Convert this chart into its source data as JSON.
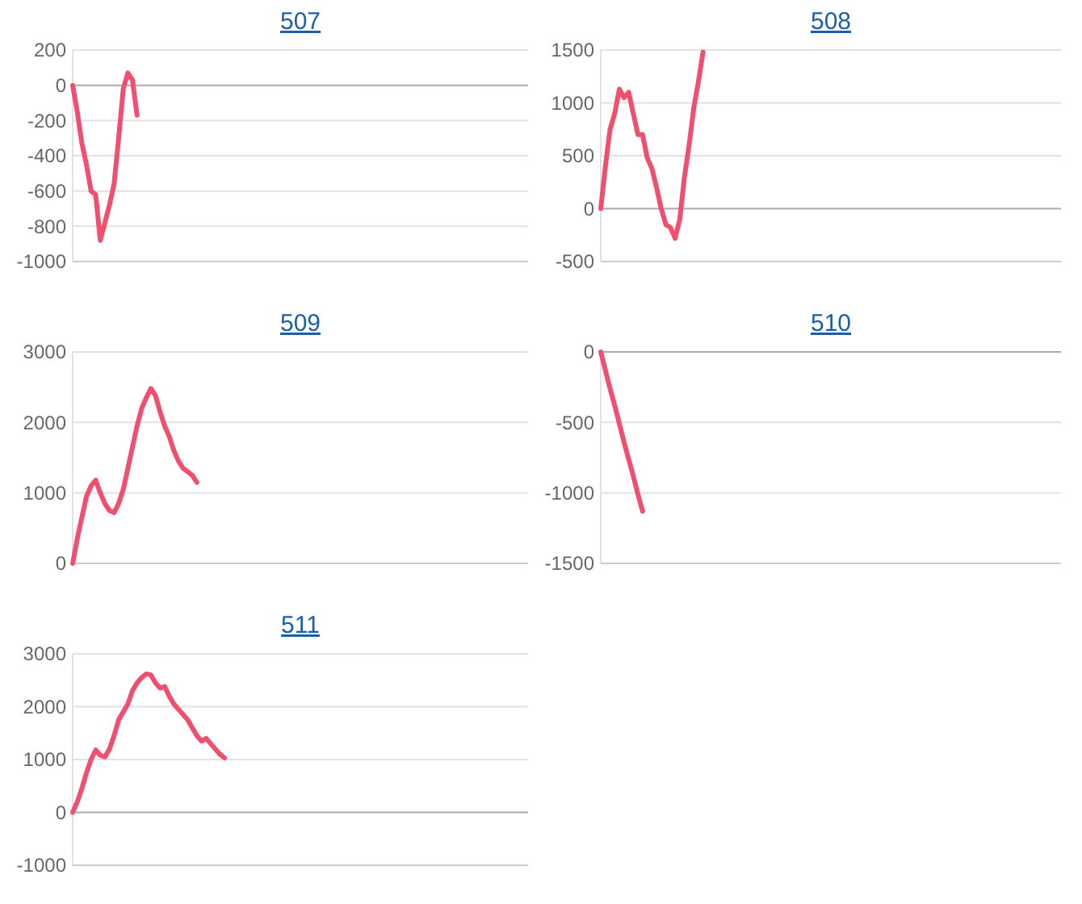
{
  "chart_data": [
    {
      "type": "line",
      "title": "507",
      "categories": [
        null,
        null,
        null,
        null,
        null,
        null,
        null,
        null,
        null,
        null,
        null,
        null,
        null,
        null,
        null,
        null,
        null,
        null,
        null,
        null,
        null,
        null,
        null,
        null,
        null,
        null,
        null,
        null,
        null,
        null,
        null,
        null,
        null,
        null,
        null,
        null,
        null,
        null,
        null,
        null,
        null,
        null,
        null,
        null,
        null,
        null,
        null,
        null,
        null,
        null,
        null,
        null,
        null,
        null,
        null,
        null,
        null,
        null,
        null,
        null,
        null,
        null,
        null,
        null,
        null,
        null,
        null,
        null,
        null,
        null,
        null,
        null,
        null,
        null,
        null,
        null,
        null,
        null,
        null,
        null,
        null,
        null,
        null,
        null,
        null,
        null,
        null,
        null,
        null,
        null,
        null,
        null,
        null,
        null,
        null,
        null,
        null,
        null,
        null,
        null
      ],
      "series": [
        {
          "color": "#f0506e",
          "values": [
            0,
            -150,
            -330,
            -450,
            -600,
            -620,
            -880,
            -780,
            -680,
            -560,
            -300,
            -20,
            70,
            30,
            -170,
            null,
            null,
            null,
            null,
            null,
            null,
            null,
            null,
            null,
            null,
            null,
            null,
            null,
            null,
            null,
            null,
            null,
            null,
            null,
            null,
            null,
            null,
            null,
            null,
            null,
            null,
            null,
            null,
            null,
            null,
            null,
            null,
            null,
            null,
            null,
            null,
            null,
            null,
            null,
            null,
            null,
            null,
            null,
            null,
            null,
            null,
            null,
            null,
            null,
            null,
            null,
            null,
            null,
            null,
            null,
            null,
            null,
            null,
            null,
            null,
            null,
            null,
            null,
            null,
            null,
            null,
            null,
            null,
            null,
            null,
            null,
            null,
            null,
            null,
            null,
            null,
            null,
            null,
            null,
            null,
            null,
            null,
            null,
            null,
            null
          ]
        }
      ],
      "ylim": [
        -1000,
        200
      ],
      "yticks": [
        -1000,
        -800,
        -600,
        -400,
        -200,
        0,
        200
      ],
      "grid": "y",
      "tick_labels": "y",
      "marker": "none"
    },
    {
      "type": "line",
      "title": "508",
      "categories": [
        null,
        null,
        null,
        null,
        null,
        null,
        null,
        null,
        null,
        null,
        null,
        null,
        null,
        null,
        null,
        null,
        null,
        null,
        null,
        null,
        null,
        null,
        null,
        null,
        null,
        null,
        null,
        null,
        null,
        null,
        null,
        null,
        null,
        null,
        null,
        null,
        null,
        null,
        null,
        null,
        null,
        null,
        null,
        null,
        null,
        null,
        null,
        null,
        null,
        null,
        null,
        null,
        null,
        null,
        null,
        null,
        null,
        null,
        null,
        null,
        null,
        null,
        null,
        null,
        null,
        null,
        null,
        null,
        null,
        null,
        null,
        null,
        null,
        null,
        null,
        null,
        null,
        null,
        null,
        null,
        null,
        null,
        null,
        null,
        null,
        null,
        null,
        null,
        null,
        null,
        null,
        null,
        null,
        null,
        null,
        null,
        null,
        null,
        null,
        null
      ],
      "series": [
        {
          "color": "#f0506e",
          "values": [
            0,
            400,
            750,
            900,
            1130,
            1050,
            1100,
            900,
            700,
            700,
            480,
            380,
            200,
            0,
            -150,
            -180,
            -280,
            -100,
            300,
            600,
            950,
            1200,
            1480,
            null,
            null,
            null,
            null,
            null,
            null,
            null,
            null,
            null,
            null,
            null,
            null,
            null,
            null,
            null,
            null,
            null,
            null,
            null,
            null,
            null,
            null,
            null,
            null,
            null,
            null,
            null,
            null,
            null,
            null,
            null,
            null,
            null,
            null,
            null,
            null,
            null,
            null,
            null,
            null,
            null,
            null,
            null,
            null,
            null,
            null,
            null,
            null,
            null,
            null,
            null,
            null,
            null,
            null,
            null,
            null,
            null,
            null,
            null,
            null,
            null,
            null,
            null,
            null,
            null,
            null,
            null,
            null,
            null,
            null,
            null,
            null,
            null,
            null,
            null,
            null,
            null
          ]
        }
      ],
      "ylim": [
        -500,
        1500
      ],
      "yticks": [
        -500,
        0,
        500,
        1000,
        1500
      ],
      "grid": "y",
      "tick_labels": "y",
      "marker": "none"
    },
    {
      "type": "line",
      "title": "509",
      "categories": [
        null,
        null,
        null,
        null,
        null,
        null,
        null,
        null,
        null,
        null,
        null,
        null,
        null,
        null,
        null,
        null,
        null,
        null,
        null,
        null,
        null,
        null,
        null,
        null,
        null,
        null,
        null,
        null,
        null,
        null,
        null,
        null,
        null,
        null,
        null,
        null,
        null,
        null,
        null,
        null,
        null,
        null,
        null,
        null,
        null,
        null,
        null,
        null,
        null,
        null,
        null,
        null,
        null,
        null,
        null,
        null,
        null,
        null,
        null,
        null,
        null,
        null,
        null,
        null,
        null,
        null,
        null,
        null,
        null,
        null,
        null,
        null,
        null,
        null,
        null,
        null,
        null,
        null,
        null,
        null,
        null,
        null,
        null,
        null,
        null,
        null,
        null,
        null,
        null,
        null,
        null,
        null,
        null,
        null,
        null,
        null,
        null,
        null,
        null,
        null
      ],
      "series": [
        {
          "color": "#f0506e",
          "values": [
            0,
            350,
            650,
            950,
            1100,
            1180,
            1000,
            850,
            750,
            720,
            850,
            1050,
            1350,
            1650,
            1950,
            2200,
            2350,
            2480,
            2380,
            2150,
            1950,
            1800,
            1600,
            1450,
            1350,
            1300,
            1250,
            1150,
            null,
            null,
            null,
            null,
            null,
            null,
            null,
            null,
            null,
            null,
            null,
            null,
            null,
            null,
            null,
            null,
            null,
            null,
            null,
            null,
            null,
            null,
            null,
            null,
            null,
            null,
            null,
            null,
            null,
            null,
            null,
            null,
            null,
            null,
            null,
            null,
            null,
            null,
            null,
            null,
            null,
            null,
            null,
            null,
            null,
            null,
            null,
            null,
            null,
            null,
            null,
            null,
            null,
            null,
            null,
            null,
            null,
            null,
            null,
            null,
            null,
            null,
            null,
            null,
            null,
            null,
            null,
            null,
            null,
            null,
            null,
            null
          ]
        }
      ],
      "ylim": [
        0,
        3000
      ],
      "yticks": [
        0,
        1000,
        2000,
        3000
      ],
      "grid": "y",
      "tick_labels": "y",
      "marker": "none"
    },
    {
      "type": "line",
      "title": "510",
      "categories": [
        null,
        null,
        null,
        null,
        null,
        null,
        null,
        null,
        null,
        null,
        null,
        null,
        null,
        null,
        null,
        null,
        null,
        null,
        null,
        null,
        null,
        null,
        null,
        null,
        null,
        null,
        null,
        null,
        null,
        null,
        null,
        null,
        null,
        null,
        null,
        null,
        null,
        null,
        null,
        null,
        null,
        null,
        null,
        null,
        null,
        null,
        null,
        null,
        null,
        null,
        null,
        null,
        null,
        null,
        null,
        null,
        null,
        null,
        null,
        null,
        null,
        null,
        null,
        null,
        null,
        null,
        null,
        null,
        null,
        null,
        null,
        null,
        null,
        null,
        null,
        null,
        null,
        null,
        null,
        null,
        null,
        null,
        null,
        null,
        null,
        null,
        null,
        null,
        null,
        null,
        null,
        null,
        null,
        null,
        null,
        null,
        null,
        null,
        null,
        null
      ],
      "series": [
        {
          "color": "#f0506e",
          "values": [
            0,
            -130,
            -260,
            -380,
            -510,
            -640,
            -760,
            -880,
            -1010,
            -1130,
            null,
            null,
            null,
            null,
            null,
            null,
            null,
            null,
            null,
            null,
            null,
            null,
            null,
            null,
            null,
            null,
            null,
            null,
            null,
            null,
            null,
            null,
            null,
            null,
            null,
            null,
            null,
            null,
            null,
            null,
            null,
            null,
            null,
            null,
            null,
            null,
            null,
            null,
            null,
            null,
            null,
            null,
            null,
            null,
            null,
            null,
            null,
            null,
            null,
            null,
            null,
            null,
            null,
            null,
            null,
            null,
            null,
            null,
            null,
            null,
            null,
            null,
            null,
            null,
            null,
            null,
            null,
            null,
            null,
            null,
            null,
            null,
            null,
            null,
            null,
            null,
            null,
            null,
            null,
            null,
            null,
            null,
            null,
            null,
            null,
            null,
            null,
            null,
            null,
            null
          ]
        }
      ],
      "ylim": [
        -1500,
        0
      ],
      "yticks": [
        -1500,
        -1000,
        -500,
        0
      ],
      "grid": "y",
      "tick_labels": "y",
      "marker": "none"
    },
    {
      "type": "line",
      "title": "511",
      "categories": [
        null,
        null,
        null,
        null,
        null,
        null,
        null,
        null,
        null,
        null,
        null,
        null,
        null,
        null,
        null,
        null,
        null,
        null,
        null,
        null,
        null,
        null,
        null,
        null,
        null,
        null,
        null,
        null,
        null,
        null,
        null,
        null,
        null,
        null,
        null,
        null,
        null,
        null,
        null,
        null,
        null,
        null,
        null,
        null,
        null,
        null,
        null,
        null,
        null,
        null,
        null,
        null,
        null,
        null,
        null,
        null,
        null,
        null,
        null,
        null,
        null,
        null,
        null,
        null,
        null,
        null,
        null,
        null,
        null,
        null,
        null,
        null,
        null,
        null,
        null,
        null,
        null,
        null,
        null,
        null,
        null,
        null,
        null,
        null,
        null,
        null,
        null,
        null,
        null,
        null,
        null,
        null,
        null,
        null,
        null,
        null,
        null,
        null,
        null,
        null
      ],
      "series": [
        {
          "color": "#f0506e",
          "values": [
            0,
            200,
            450,
            750,
            1000,
            1180,
            1080,
            1050,
            1200,
            1450,
            1750,
            1900,
            2050,
            2300,
            2450,
            2550,
            2620,
            2600,
            2450,
            2350,
            2380,
            2200,
            2050,
            1950,
            1850,
            1750,
            1600,
            1450,
            1350,
            1400,
            1300,
            1200,
            1100,
            1030,
            null,
            null,
            null,
            null,
            null,
            null,
            null,
            null,
            null,
            null,
            null,
            null,
            null,
            null,
            null,
            null,
            null,
            null,
            null,
            null,
            null,
            null,
            null,
            null,
            null,
            null,
            null,
            null,
            null,
            null,
            null,
            null,
            null,
            null,
            null,
            null,
            null,
            null,
            null,
            null,
            null,
            null,
            null,
            null,
            null,
            null,
            null,
            null,
            null,
            null,
            null,
            null,
            null,
            null,
            null,
            null,
            null,
            null,
            null,
            null,
            null,
            null,
            null,
            null,
            null,
            null
          ]
        }
      ],
      "ylim": [
        -1000,
        3000
      ],
      "yticks": [
        -1000,
        0,
        1000,
        2000,
        3000
      ],
      "grid": "y",
      "tick_labels": "y",
      "marker": "none"
    }
  ]
}
